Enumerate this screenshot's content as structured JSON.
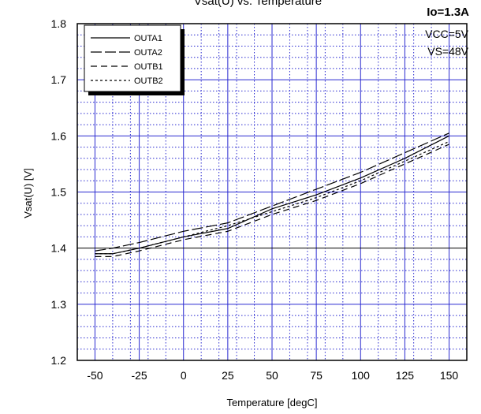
{
  "chart_data": {
    "type": "line",
    "title": "Vsat(U) vs. Temperature",
    "xlabel": "Temperature [degC]",
    "ylabel": "Vsat(U)  [V]",
    "xlim": [
      -60,
      160
    ],
    "ylim": [
      1.2,
      1.8
    ],
    "x_ticks": [
      "-50",
      "-25",
      "0",
      "25",
      "50",
      "75",
      "100",
      "125",
      "150"
    ],
    "y_ticks": [
      "1.2",
      "1.3",
      "1.4",
      "1.5",
      "1.6",
      "1.7",
      "1.8"
    ],
    "grid": true,
    "legend_position": "top-left",
    "annotations": [
      "Io=1.3A",
      "VCC=5V",
      "VS=48V"
    ],
    "series": [
      {
        "name": "OUTA1",
        "dash": "solid",
        "x": [
          -50,
          -40,
          -25,
          0,
          25,
          50,
          75,
          100,
          125,
          150
        ],
        "y": [
          1.39,
          1.39,
          1.4,
          1.42,
          1.435,
          1.47,
          1.495,
          1.525,
          1.56,
          1.6
        ]
      },
      {
        "name": "OUTA2",
        "dash": "longdash",
        "x": [
          -50,
          -40,
          -25,
          0,
          25,
          50,
          75,
          100,
          125,
          150
        ],
        "y": [
          1.395,
          1.4,
          1.41,
          1.43,
          1.445,
          1.475,
          1.505,
          1.535,
          1.57,
          1.605
        ]
      },
      {
        "name": "OUTB1",
        "dash": "dash",
        "x": [
          -50,
          -40,
          -25,
          0,
          25,
          50,
          75,
          100,
          125,
          150
        ],
        "y": [
          1.385,
          1.385,
          1.395,
          1.415,
          1.43,
          1.46,
          1.485,
          1.515,
          1.55,
          1.585
        ]
      },
      {
        "name": "OUTB2",
        "dash": "dot",
        "x": [
          -50,
          -40,
          -25,
          0,
          25,
          50,
          75,
          100,
          125,
          150
        ],
        "y": [
          1.39,
          1.39,
          1.4,
          1.42,
          1.44,
          1.465,
          1.49,
          1.52,
          1.555,
          1.59
        ]
      }
    ]
  }
}
